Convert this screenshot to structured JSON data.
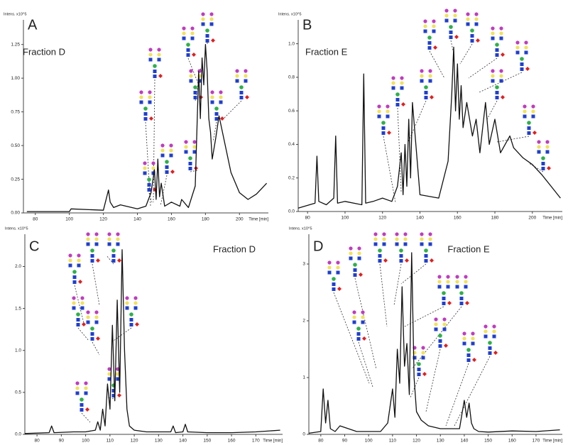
{
  "chart_data": [
    {
      "type": "line",
      "panel_label": "A",
      "annotation": "Fraction D",
      "xlabel": "Time [min]",
      "ylabel": "Intens. x10^5",
      "color": "#111111",
      "x": [
        75,
        100,
        101,
        120,
        123,
        124,
        126,
        130,
        140,
        145,
        148,
        150,
        151,
        152,
        153,
        154,
        156,
        160,
        165,
        166,
        170,
        174,
        176,
        177,
        178,
        179,
        180,
        181,
        182,
        183,
        184,
        186,
        188,
        190,
        195,
        200,
        205,
        210,
        216
      ],
      "values": [
        0.01,
        0.01,
        0.03,
        0.02,
        0.17,
        0.08,
        0.04,
        0.06,
        0.03,
        0.05,
        0.15,
        0.32,
        0.1,
        0.4,
        0.12,
        0.22,
        0.05,
        0.08,
        0.05,
        0.1,
        0.04,
        0.2,
        1.05,
        0.7,
        1.15,
        0.95,
        1.25,
        1.05,
        0.7,
        0.6,
        0.4,
        0.55,
        0.72,
        0.6,
        0.3,
        0.15,
        0.1,
        0.14,
        0.22
      ],
      "xlim": [
        73,
        217
      ],
      "ylim": [
        0,
        1.38
      ],
      "xticks": [
        80,
        100,
        120,
        140,
        160,
        180,
        200
      ],
      "yticks": [
        {
          "value": 0,
          "label": "0.00"
        },
        {
          "value": 0.25,
          "label": "0.25"
        },
        {
          "value": 0.5,
          "label": "0.50"
        },
        {
          "value": 0.75,
          "label": "0.75"
        },
        {
          "value": 1,
          "label": "1.00"
        },
        {
          "value": 1.25,
          "label": "1.25"
        }
      ]
    },
    {
      "type": "line",
      "panel_label": "B",
      "annotation": "Fraction E",
      "xlabel": "Time [min]",
      "ylabel": "Intens. x10^5",
      "color": "#111111",
      "x": [
        75,
        84,
        85,
        86,
        90,
        94,
        95,
        96,
        100,
        109,
        110,
        111,
        115,
        120,
        125,
        128,
        130,
        131,
        132,
        133,
        134,
        135,
        136,
        140,
        150,
        155,
        157,
        158,
        159,
        160,
        161,
        162,
        163,
        165,
        168,
        170,
        172,
        175,
        177,
        180,
        183,
        188,
        190,
        195,
        200,
        205,
        210,
        215
      ],
      "values": [
        0.02,
        0.05,
        0.33,
        0.06,
        0.04,
        0.08,
        0.45,
        0.05,
        0.06,
        0.04,
        0.82,
        0.05,
        0.06,
        0.08,
        0.06,
        0.15,
        0.35,
        0.1,
        0.4,
        0.15,
        0.55,
        0.2,
        0.65,
        0.1,
        0.08,
        0.3,
        0.7,
        0.98,
        0.6,
        0.88,
        0.55,
        0.75,
        0.5,
        0.65,
        0.45,
        0.55,
        0.35,
        0.65,
        0.4,
        0.55,
        0.35,
        0.45,
        0.38,
        0.32,
        0.28,
        0.22,
        0.15,
        0.08
      ],
      "xlim": [
        75,
        216
      ],
      "ylim": [
        0,
        1.1
      ],
      "xticks": [
        80,
        100,
        120,
        140,
        160,
        180,
        200
      ],
      "yticks": [
        {
          "value": 0,
          "label": "0.0"
        },
        0.2,
        0.4,
        0.6,
        0.8,
        {
          "value": 1,
          "label": "1.0"
        }
      ]
    },
    {
      "type": "line",
      "panel_label": "C",
      "annotation": "Fraction D",
      "xlabel": "Time [min]",
      "ylabel": "Intens. x10^5",
      "color": "#111111",
      "x": [
        75,
        85,
        86,
        87,
        95,
        100,
        104,
        105,
        106,
        107,
        108,
        109,
        110,
        111,
        112,
        113,
        114,
        115,
        116,
        117,
        118,
        120,
        125,
        135,
        136,
        137,
        140,
        141,
        142,
        150,
        160,
        170,
        180
      ],
      "values": [
        0.01,
        0.02,
        0.1,
        0.02,
        0.03,
        0.03,
        0.05,
        0.15,
        0.05,
        0.3,
        0.1,
        0.6,
        0.3,
        1.3,
        0.4,
        1.6,
        0.5,
        2.2,
        1.0,
        0.3,
        0.1,
        0.05,
        0.03,
        0.03,
        0.1,
        0.02,
        0.03,
        0.12,
        0.03,
        0.02,
        0.02,
        0.03,
        0.05
      ],
      "xlim": [
        75,
        181
      ],
      "ylim": [
        0,
        2.3
      ],
      "xticks": [
        80,
        90,
        100,
        110,
        120,
        130,
        140,
        150,
        160,
        170
      ],
      "yticks": [
        {
          "value": 0,
          "label": "0.0"
        },
        0.5,
        {
          "value": 1,
          "label": "1.0"
        },
        1.5,
        {
          "value": 2,
          "label": "2.0"
        }
      ]
    },
    {
      "type": "line",
      "panel_label": "D",
      "annotation": "Fraction E",
      "xlabel": "Time [min]",
      "ylabel": "Intens. x10^5",
      "color": "#111111",
      "x": [
        75,
        80,
        81,
        82,
        83,
        84,
        86,
        88,
        95,
        105,
        108,
        110,
        111,
        112,
        113,
        114,
        115,
        116,
        117,
        118,
        119,
        120,
        122,
        125,
        130,
        138,
        140,
        141,
        142,
        143,
        144,
        146,
        150,
        160,
        170,
        180
      ],
      "values": [
        0.02,
        0.05,
        0.8,
        0.2,
        0.6,
        0.1,
        0.05,
        0.15,
        0.05,
        0.05,
        0.2,
        0.8,
        0.3,
        1.5,
        0.9,
        2.6,
        1.2,
        1.6,
        0.7,
        3.2,
        1.0,
        0.4,
        0.25,
        0.15,
        0.1,
        0.1,
        0.6,
        0.3,
        0.55,
        0.2,
        0.1,
        0.05,
        0.04,
        0.06,
        0.05,
        0.08
      ],
      "xlim": [
        75,
        181
      ],
      "ylim": [
        0,
        3.4
      ],
      "xticks": [
        80,
        90,
        100,
        110,
        120,
        130,
        140,
        150,
        160,
        170
      ],
      "yticks": [
        0,
        1,
        2,
        3
      ]
    }
  ]
}
